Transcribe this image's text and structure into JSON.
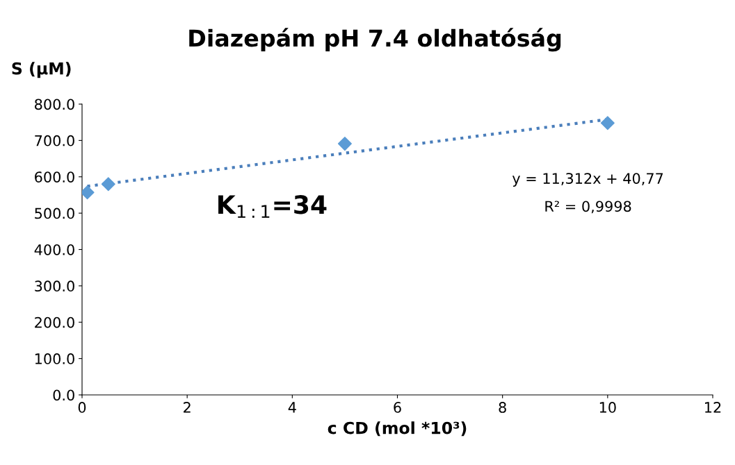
{
  "chart_data": {
    "type": "scatter",
    "title": "Diazepám pH 7.4 oldhatóság",
    "xlabel": "c CD (mol *10³)",
    "ylabel": "S (µM)",
    "series": [
      {
        "color": "#5b9bd5",
        "marker": "diamond",
        "x": [
          0.1,
          0.5,
          5,
          10
        ],
        "values": [
          557,
          580,
          691,
          748
        ]
      },
      {
        "type": "line",
        "color": "#4a7ebb",
        "line_style": "dotted",
        "marker": "none",
        "x": [
          0.1,
          10
        ],
        "values": [
          574,
          758
        ]
      }
    ],
    "xlim": [
      0,
      12
    ],
    "xticks": [
      0,
      2,
      4,
      6,
      8,
      10,
      12
    ],
    "ylim": [
      0,
      800
    ],
    "yticks": [
      {
        "value": 0,
        "label": "0.0"
      },
      {
        "value": 100,
        "label": "100.0"
      },
      {
        "value": 200,
        "label": "200.0"
      },
      {
        "value": 300,
        "label": "300.0"
      },
      {
        "value": 400,
        "label": "400.0"
      },
      {
        "value": 500,
        "label": "500.0"
      },
      {
        "value": 600,
        "label": "600.0"
      },
      {
        "value": 700,
        "label": "700.0"
      },
      {
        "value": 800,
        "label": "800.0"
      }
    ],
    "annotations": [
      "y = 11,312x + 40,77",
      "R² = 0,9998",
      "K$_{1:1}$=34"
    ],
    "grid": false,
    "legend": false
  }
}
